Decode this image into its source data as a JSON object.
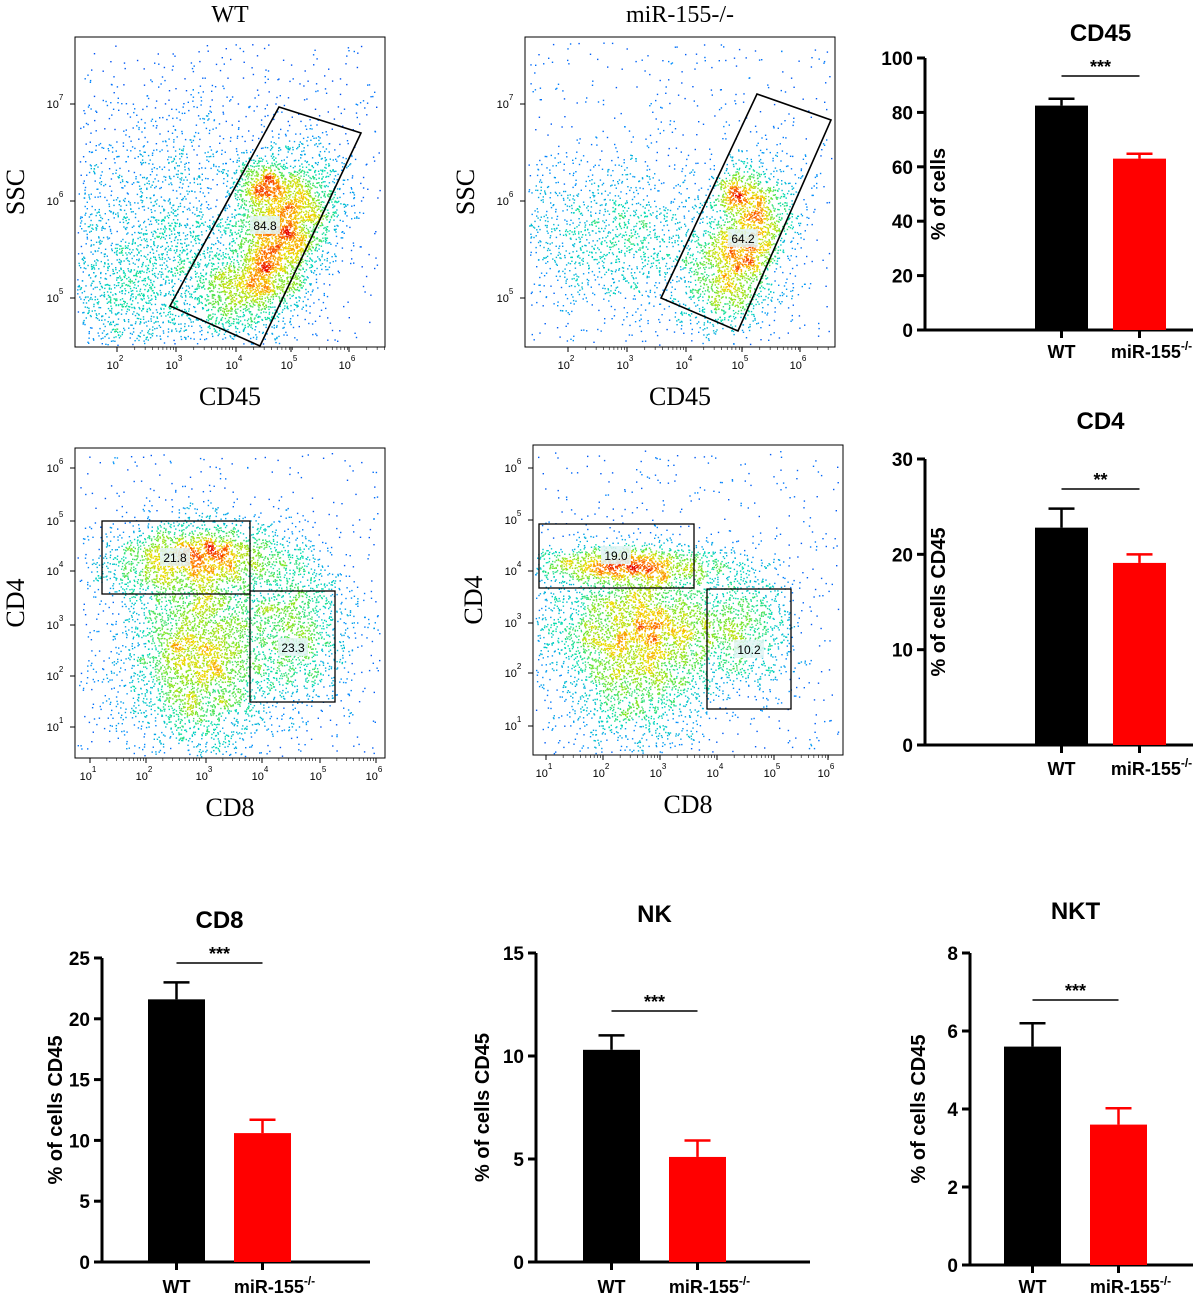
{
  "flow_panels": [
    {
      "column_title": "WT",
      "xlabel": "CD45",
      "ylabel": "SSC",
      "x_ticks": [
        {
          "base": "10",
          "exp": "2"
        },
        {
          "base": "10",
          "exp": "3"
        },
        {
          "base": "10",
          "exp": "4"
        },
        {
          "base": "10",
          "exp": "5"
        },
        {
          "base": "10",
          "exp": "6"
        }
      ],
      "y_ticks": [
        {
          "base": "10",
          "exp": "5"
        },
        {
          "base": "10",
          "exp": "6"
        },
        {
          "base": "10",
          "exp": "7"
        }
      ],
      "gates": [
        {
          "label": "84.8"
        }
      ]
    },
    {
      "column_title": "miR-155-/-",
      "xlabel": "CD45",
      "ylabel": "SSC",
      "x_ticks": [
        {
          "base": "10",
          "exp": "2"
        },
        {
          "base": "10",
          "exp": "3"
        },
        {
          "base": "10",
          "exp": "4"
        },
        {
          "base": "10",
          "exp": "5"
        },
        {
          "base": "10",
          "exp": "6"
        }
      ],
      "y_ticks": [
        {
          "base": "10",
          "exp": "5"
        },
        {
          "base": "10",
          "exp": "6"
        },
        {
          "base": "10",
          "exp": "7"
        }
      ],
      "gates": [
        {
          "label": "64.2"
        }
      ]
    },
    {
      "column_title": "",
      "xlabel": "CD8",
      "ylabel": "CD4",
      "x_ticks": [
        {
          "base": "10",
          "exp": "1"
        },
        {
          "base": "10",
          "exp": "2"
        },
        {
          "base": "10",
          "exp": "3"
        },
        {
          "base": "10",
          "exp": "4"
        },
        {
          "base": "10",
          "exp": "5"
        },
        {
          "base": "10",
          "exp": "6"
        }
      ],
      "y_ticks": [
        {
          "base": "10",
          "exp": "1"
        },
        {
          "base": "10",
          "exp": "2"
        },
        {
          "base": "10",
          "exp": "3"
        },
        {
          "base": "10",
          "exp": "4"
        },
        {
          "base": "10",
          "exp": "5"
        },
        {
          "base": "10",
          "exp": "6"
        }
      ],
      "gates": [
        {
          "label": "21.8"
        },
        {
          "label": "23.3"
        }
      ]
    },
    {
      "column_title": "",
      "xlabel": "CD8",
      "ylabel": "CD4",
      "x_ticks": [
        {
          "base": "10",
          "exp": "1"
        },
        {
          "base": "10",
          "exp": "2"
        },
        {
          "base": "10",
          "exp": "3"
        },
        {
          "base": "10",
          "exp": "4"
        },
        {
          "base": "10",
          "exp": "5"
        },
        {
          "base": "10",
          "exp": "6"
        }
      ],
      "y_ticks": [
        {
          "base": "10",
          "exp": "1"
        },
        {
          "base": "10",
          "exp": "2"
        },
        {
          "base": "10",
          "exp": "3"
        },
        {
          "base": "10",
          "exp": "4"
        },
        {
          "base": "10",
          "exp": "5"
        },
        {
          "base": "10",
          "exp": "6"
        }
      ],
      "gates": [
        {
          "label": "19.0"
        },
        {
          "label": "10.2"
        }
      ]
    }
  ],
  "chart_data": [
    {
      "type": "bar",
      "title": "CD45",
      "xlabel": "",
      "ylabel": "% of cells",
      "categories": [
        {
          "base": "WT",
          "sup": ""
        },
        {
          "base": "miR-155",
          "sup": "-/-"
        }
      ],
      "values": [
        82.5,
        63
      ],
      "errors": [
        2.5,
        1.8
      ],
      "colors": [
        "#000000",
        "#ff0000"
      ],
      "ylim": [
        0,
        100
      ],
      "yticks": [
        0,
        20,
        40,
        60,
        80,
        100
      ],
      "significance": "***"
    },
    {
      "type": "bar",
      "title": "CD4",
      "xlabel": "",
      "ylabel": "% of cells CD45",
      "categories": [
        {
          "base": "WT",
          "sup": ""
        },
        {
          "base": "miR-155",
          "sup": "-/-"
        }
      ],
      "values": [
        22.8,
        19.1
      ],
      "errors": [
        2.0,
        0.9
      ],
      "colors": [
        "#000000",
        "#ff0000"
      ],
      "ylim": [
        0,
        30
      ],
      "yticks": [
        0,
        10,
        20,
        30
      ],
      "significance": "**"
    },
    {
      "type": "bar",
      "title": "CD8",
      "xlabel": "",
      "ylabel": "% of cells CD45",
      "categories": [
        {
          "base": "WT",
          "sup": ""
        },
        {
          "base": "miR-155",
          "sup": "-/-"
        }
      ],
      "values": [
        21.6,
        10.6
      ],
      "errors": [
        1.4,
        1.1
      ],
      "colors": [
        "#000000",
        "#ff0000"
      ],
      "ylim": [
        0,
        25
      ],
      "yticks": [
        0,
        5,
        10,
        15,
        20,
        25
      ],
      "significance": "***"
    },
    {
      "type": "bar",
      "title": "NK",
      "xlabel": "",
      "ylabel": "% of cells CD45",
      "categories": [
        {
          "base": "WT",
          "sup": ""
        },
        {
          "base": "miR-155",
          "sup": "-/-"
        }
      ],
      "values": [
        10.3,
        5.1
      ],
      "errors": [
        0.7,
        0.8
      ],
      "colors": [
        "#000000",
        "#ff0000"
      ],
      "ylim": [
        0,
        15
      ],
      "yticks": [
        0,
        5,
        10,
        15
      ],
      "significance": "***"
    },
    {
      "type": "bar",
      "title": "NKT",
      "xlabel": "",
      "ylabel": "% of cells CD45",
      "categories": [
        {
          "base": "WT",
          "sup": ""
        },
        {
          "base": "miR-155",
          "sup": "-/-"
        }
      ],
      "values": [
        5.6,
        3.6
      ],
      "errors": [
        0.6,
        0.42
      ],
      "colors": [
        "#000000",
        "#ff0000"
      ],
      "ylim": [
        0,
        8
      ],
      "yticks": [
        0,
        2,
        4,
        6,
        8
      ],
      "significance": "***"
    }
  ]
}
